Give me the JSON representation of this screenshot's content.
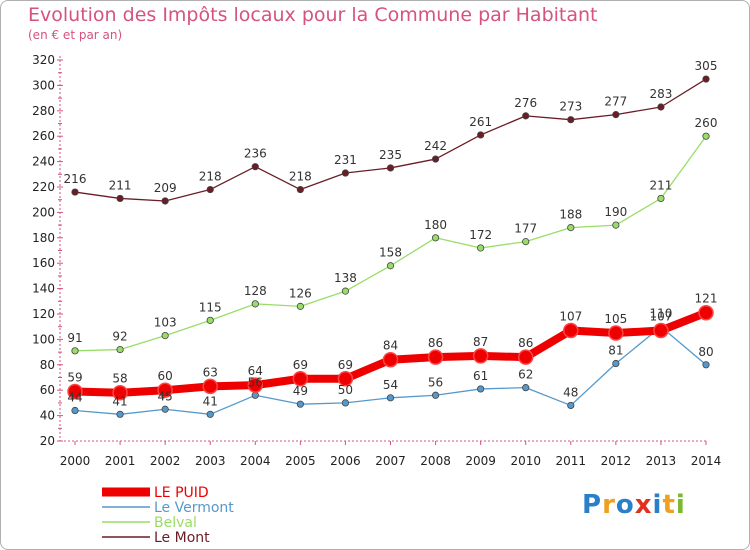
{
  "header": {
    "title": "Evolution des Impôts locaux pour la Commune par Habitant",
    "subtitle": "(en € et par an)"
  },
  "chart_data": {
    "type": "line",
    "x": [
      "2000",
      "2001",
      "2002",
      "2003",
      "2004",
      "2005",
      "2006",
      "2007",
      "2008",
      "2009",
      "2010",
      "2011",
      "2012",
      "2013",
      "2014"
    ],
    "ylim": [
      20,
      320
    ],
    "yticks": [
      20,
      40,
      60,
      80,
      100,
      120,
      140,
      160,
      180,
      200,
      220,
      240,
      260,
      280,
      300,
      320
    ],
    "grid": false,
    "legend_position": "bottom-left",
    "series": [
      {
        "name": "Le Mont",
        "color": "#6b1d26",
        "values": [
          216,
          211,
          209,
          218,
          236,
          218,
          231,
          235,
          242,
          261,
          276,
          273,
          277,
          283,
          305
        ]
      },
      {
        "name": "Belval",
        "color": "#99dd66",
        "values": [
          91,
          92,
          103,
          115,
          128,
          126,
          138,
          158,
          180,
          172,
          177,
          188,
          190,
          211,
          260
        ]
      },
      {
        "name": "Le Vermont",
        "color": "#5599cc",
        "values": [
          44,
          41,
          45,
          41,
          56,
          49,
          50,
          54,
          56,
          61,
          62,
          48,
          81,
          110,
          80
        ]
      },
      {
        "name": "LE PUID",
        "color": "#ee0000",
        "values": [
          59,
          58,
          60,
          63,
          64,
          69,
          69,
          84,
          86,
          87,
          86,
          107,
          105,
          107,
          121
        ]
      }
    ],
    "legend": [
      "LE PUID",
      "Le Vermont",
      "Belval",
      "Le Mont"
    ]
  },
  "branding": {
    "logo_text": "Proxiti",
    "logo_colors": [
      "#2a7fc9",
      "#f0a020",
      "#2a7fc9",
      "#e0301e",
      "#2a7fc9",
      "#f0a020",
      "#7ab82e"
    ]
  }
}
